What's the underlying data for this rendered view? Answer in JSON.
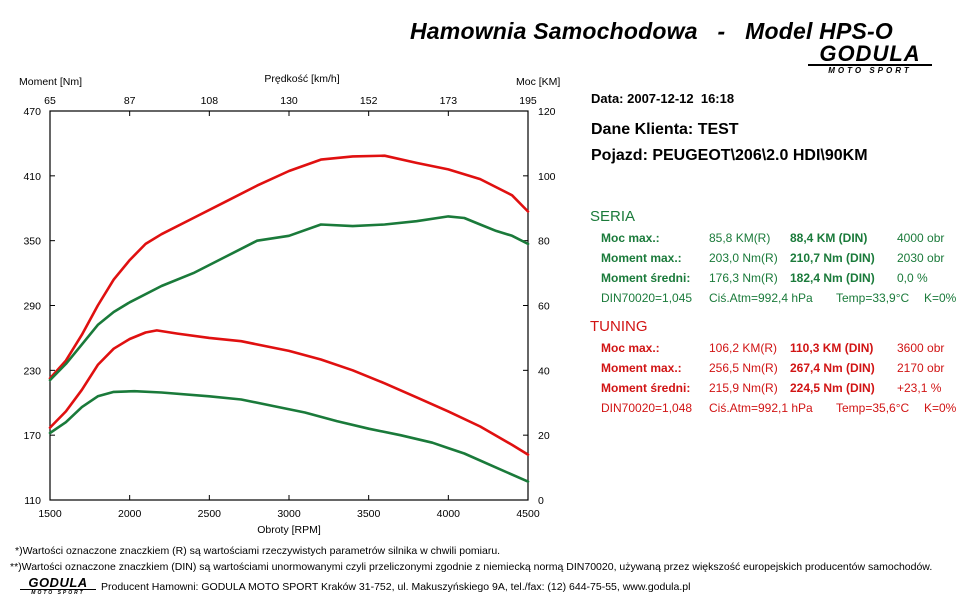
{
  "header": {
    "title": "Hamownia Samochodowa   -   Model HPS-O",
    "logo_text": "GODULA",
    "logo_subtext": "MOTO SPORT"
  },
  "chart_data": {
    "type": "line",
    "x_axis": {
      "label": "Obroty [RPM]",
      "range": [
        1500,
        4500
      ],
      "ticks": [
        1500,
        2000,
        2500,
        3000,
        3500,
        4000,
        4500
      ]
    },
    "top_axis": {
      "label": "Prędkość [km/h]",
      "ticks": [
        "65",
        "87",
        "108",
        "130",
        "152",
        "173",
        "195"
      ]
    },
    "left_axis": {
      "label": "Moment [Nm]",
      "range": [
        110,
        470
      ],
      "ticks": [
        110,
        170,
        230,
        290,
        350,
        410,
        470
      ]
    },
    "right_axis": {
      "label": "Moc [KM]",
      "range": [
        0,
        120
      ],
      "ticks": [
        0,
        20,
        40,
        60,
        80,
        100,
        120
      ]
    },
    "grid": false,
    "series": [
      {
        "axis": "left",
        "color": "#e01010",
        "x": [
          1500,
          1600,
          1700,
          1800,
          1900,
          2000,
          2100,
          2170,
          2300,
          2500,
          2700,
          3000,
          3200,
          3400,
          3600,
          3800,
          4000,
          4200,
          4400,
          4500
        ],
        "y": [
          177,
          192,
          212,
          235,
          250,
          259,
          265,
          267,
          264,
          260,
          257,
          248,
          240,
          230,
          218,
          205,
          192,
          178,
          161,
          152
        ]
      },
      {
        "axis": "left",
        "color": "#1a7a3a",
        "x": [
          1500,
          1600,
          1700,
          1800,
          1900,
          2030,
          2200,
          2500,
          2700,
          2900,
          3100,
          3300,
          3500,
          3700,
          3900,
          4000,
          4100,
          4300,
          4500
        ],
        "y": [
          172,
          182,
          196,
          206,
          210,
          210.7,
          209.5,
          206,
          203,
          197,
          191,
          183,
          176,
          170,
          163,
          158,
          153,
          140,
          127
        ]
      },
      {
        "axis": "right",
        "color": "#e01010",
        "x": [
          1500,
          1600,
          1700,
          1800,
          1900,
          2000,
          2100,
          2200,
          2400,
          2600,
          2800,
          3000,
          3200,
          3400,
          3600,
          3800,
          4000,
          4200,
          4400,
          4500
        ],
        "y": [
          37.5,
          43,
          51,
          60,
          68,
          74,
          79,
          82,
          87,
          92,
          97,
          101.5,
          105,
          106,
          106.2,
          104,
          102,
          99,
          94,
          89
        ]
      },
      {
        "axis": "right",
        "color": "#1a7a3a",
        "x": [
          1500,
          1600,
          1700,
          1800,
          1900,
          2000,
          2200,
          2400,
          2600,
          2800,
          3000,
          3200,
          3400,
          3600,
          3800,
          4000,
          4100,
          4200,
          4300,
          4400,
          4500
        ],
        "y": [
          37,
          42,
          48,
          54,
          58,
          61,
          66,
          70,
          75,
          80,
          81.5,
          85,
          84.5,
          85,
          86,
          87.5,
          87,
          85,
          83,
          81.5,
          79
        ]
      }
    ]
  },
  "info": {
    "date": "Data: 2007-12-12  16:18",
    "client": "Dane Klienta: TEST",
    "vehicle": "Pojazd: PEUGEOT\\206\\2.0 HDI\\90KM"
  },
  "seria": {
    "title": "SERIA",
    "rows": [
      {
        "label": "Moc max.:",
        "r": "85,8 KM(R)",
        "din": "88,4 KM (DIN)",
        "extra": "4000 obr"
      },
      {
        "label": "Moment max.:",
        "r": "203,0 Nm(R)",
        "din": "210,7 Nm (DIN)",
        "extra": "2030 obr"
      },
      {
        "label": "Moment średni:",
        "r": "176,3 Nm(R)",
        "din": "182,4 Nm (DIN)",
        "extra": "0,0 %"
      }
    ],
    "footer": {
      "din": "DIN70020=1,045",
      "atm": "Ciś.Atm=992,4 hPa",
      "temp": "Temp=33,9°C",
      "k": "K=0%"
    }
  },
  "tuning": {
    "title": "TUNING",
    "rows": [
      {
        "label": "Moc max.:",
        "r": "106,2 KM(R)",
        "din": "110,3 KM (DIN)",
        "extra": "3600 obr"
      },
      {
        "label": "Moment max.:",
        "r": "256,5 Nm(R)",
        "din": "267,4 Nm (DIN)",
        "extra": "2170 obr"
      },
      {
        "label": "Moment średni:",
        "r": "215,9 Nm(R)",
        "din": "224,5 Nm (DIN)",
        "extra": "+23,1 %"
      }
    ],
    "footer": {
      "din": "DIN70020=1,048",
      "atm": "Ciś.Atm=992,1 hPa",
      "temp": "Temp=35,6°C",
      "k": "K=0%"
    }
  },
  "footnotes": {
    "line1": "*)Wartości oznaczone znaczkiem (R) są wartościami rzeczywistych parametrów silnika w chwili pomiaru.",
    "line2": "**)Wartości oznaczone znaczkiem (DIN) są wartościami unormowanymi czyli przeliczonymi zgodnie z niemiecką normą DIN70020, używaną przez większość europejskich producentów samochodów.",
    "producer": "Producent Hamowni: GODULA MOTO SPORT Kraków 31-752, ul. Makuszyńskiego 9A, tel./fax: (12) 644-75-55, www.godula.pl"
  }
}
